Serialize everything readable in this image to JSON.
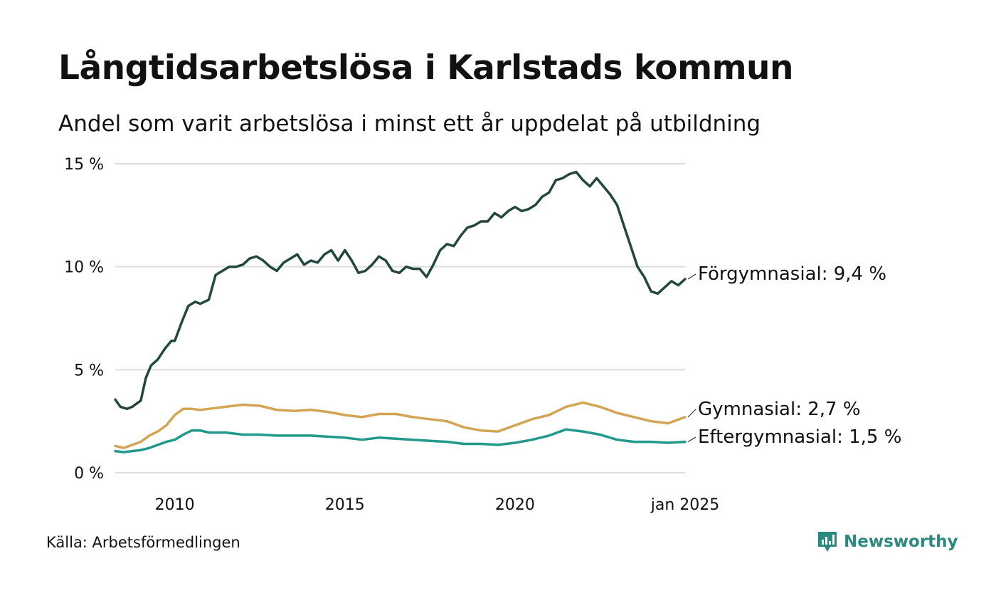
{
  "header": {
    "title": "Långtidsarbetslösa i Karlstads kommun",
    "subtitle": "Andel som varit arbetslösa i minst ett år uppdelat på utbildning"
  },
  "footer": {
    "source": "Källa: Arbetsförmedlingen",
    "brand": "Newsworthy"
  },
  "colors": {
    "forgymnasial": "#22473f",
    "gymnasial": "#d4a455",
    "eftergymnasial": "#22998a",
    "grid": "#dddddd",
    "brand": "#2a8a7f"
  },
  "chart_data": {
    "type": "line",
    "title": "Långtidsarbetslösa i Karlstads kommun",
    "subtitle": "Andel som varit arbetslösa i minst ett år uppdelat på utbildning",
    "xlabel": "",
    "ylabel": "",
    "x_range": [
      2008.25,
      2025.0
    ],
    "ylim": [
      0,
      15
    ],
    "y_ticks": [
      0,
      5,
      10,
      15
    ],
    "y_tick_labels": [
      "0 %",
      "5 %",
      "10 %",
      "15 %"
    ],
    "x_ticks": [
      2010,
      2015,
      2020,
      2025
    ],
    "x_tick_labels": [
      "2010",
      "2015",
      "2020",
      "jan 2025"
    ],
    "grid": true,
    "series": [
      {
        "name": "Förgymnasial",
        "color": "#22473f",
        "end_label": "Förgymnasial: 9,4 %",
        "x": [
          2008.25,
          2008.4,
          2008.6,
          2008.75,
          2009.0,
          2009.15,
          2009.3,
          2009.5,
          2009.7,
          2009.9,
          2010.0,
          2010.2,
          2010.4,
          2010.6,
          2010.75,
          2011.0,
          2011.2,
          2011.4,
          2011.6,
          2011.8,
          2012.0,
          2012.2,
          2012.4,
          2012.6,
          2012.8,
          2013.0,
          2013.2,
          2013.4,
          2013.6,
          2013.8,
          2014.0,
          2014.2,
          2014.4,
          2014.6,
          2014.8,
          2015.0,
          2015.2,
          2015.4,
          2015.6,
          2015.8,
          2016.0,
          2016.2,
          2016.4,
          2016.6,
          2016.8,
          2017.0,
          2017.2,
          2017.4,
          2017.6,
          2017.8,
          2018.0,
          2018.2,
          2018.4,
          2018.6,
          2018.8,
          2019.0,
          2019.2,
          2019.4,
          2019.6,
          2019.8,
          2020.0,
          2020.2,
          2020.4,
          2020.6,
          2020.8,
          2021.0,
          2021.2,
          2021.4,
          2021.6,
          2021.8,
          2022.0,
          2022.2,
          2022.4,
          2022.6,
          2022.8,
          2023.0,
          2023.2,
          2023.4,
          2023.6,
          2023.8,
          2024.0,
          2024.2,
          2024.4,
          2024.6,
          2024.8,
          2025.0
        ],
        "values": [
          3.55,
          3.2,
          3.1,
          3.2,
          3.5,
          4.6,
          5.2,
          5.5,
          6.0,
          6.4,
          6.4,
          7.3,
          8.1,
          8.3,
          8.2,
          8.4,
          9.6,
          9.8,
          10.0,
          10.0,
          10.1,
          10.4,
          10.5,
          10.3,
          10.0,
          9.8,
          10.2,
          10.4,
          10.6,
          10.1,
          10.3,
          10.2,
          10.6,
          10.8,
          10.3,
          10.8,
          10.3,
          9.7,
          9.8,
          10.1,
          10.5,
          10.3,
          9.8,
          9.7,
          10.0,
          9.9,
          9.9,
          9.5,
          10.1,
          10.8,
          11.1,
          11.0,
          11.5,
          11.9,
          12.0,
          12.2,
          12.2,
          12.6,
          12.4,
          12.7,
          12.9,
          12.7,
          12.8,
          13.0,
          13.4,
          13.6,
          14.2,
          14.3,
          14.5,
          14.6,
          14.2,
          13.9,
          14.3,
          13.9,
          13.5,
          13.0,
          12.0,
          11.0,
          10.0,
          9.5,
          8.8,
          8.7,
          9.0,
          9.3,
          9.1,
          9.4
        ]
      },
      {
        "name": "Gymnasial",
        "color": "#d4a455",
        "end_label": "Gymnasial: 2,7 %",
        "x": [
          2008.25,
          2008.5,
          2008.75,
          2009.0,
          2009.25,
          2009.5,
          2009.75,
          2010.0,
          2010.25,
          2010.5,
          2010.75,
          2011.0,
          2011.5,
          2012.0,
          2012.5,
          2013.0,
          2013.5,
          2014.0,
          2014.5,
          2015.0,
          2015.5,
          2016.0,
          2016.5,
          2017.0,
          2017.5,
          2018.0,
          2018.5,
          2019.0,
          2019.5,
          2020.0,
          2020.5,
          2021.0,
          2021.5,
          2022.0,
          2022.5,
          2023.0,
          2023.5,
          2024.0,
          2024.5,
          2025.0
        ],
        "values": [
          1.3,
          1.2,
          1.35,
          1.5,
          1.8,
          2.0,
          2.3,
          2.8,
          3.1,
          3.1,
          3.05,
          3.1,
          3.2,
          3.3,
          3.25,
          3.05,
          3.0,
          3.05,
          2.95,
          2.8,
          2.7,
          2.85,
          2.85,
          2.7,
          2.6,
          2.5,
          2.2,
          2.05,
          2.0,
          2.3,
          2.6,
          2.8,
          3.2,
          3.4,
          3.2,
          2.9,
          2.7,
          2.5,
          2.4,
          2.7
        ]
      },
      {
        "name": "Eftergymnasial",
        "color": "#22998a",
        "end_label": "Eftergymnasial: 1,5 %",
        "x": [
          2008.25,
          2008.5,
          2008.75,
          2009.0,
          2009.25,
          2009.5,
          2009.75,
          2010.0,
          2010.25,
          2010.5,
          2010.75,
          2011.0,
          2011.5,
          2012.0,
          2012.5,
          2013.0,
          2013.5,
          2014.0,
          2014.5,
          2015.0,
          2015.5,
          2016.0,
          2016.5,
          2017.0,
          2017.5,
          2018.0,
          2018.5,
          2019.0,
          2019.5,
          2020.0,
          2020.5,
          2021.0,
          2021.5,
          2022.0,
          2022.5,
          2023.0,
          2023.5,
          2024.0,
          2024.5,
          2025.0
        ],
        "values": [
          1.05,
          1.0,
          1.05,
          1.1,
          1.2,
          1.35,
          1.5,
          1.6,
          1.85,
          2.05,
          2.05,
          1.95,
          1.95,
          1.85,
          1.85,
          1.8,
          1.8,
          1.8,
          1.75,
          1.7,
          1.6,
          1.7,
          1.65,
          1.6,
          1.55,
          1.5,
          1.4,
          1.4,
          1.35,
          1.45,
          1.6,
          1.8,
          2.1,
          2.0,
          1.85,
          1.6,
          1.5,
          1.5,
          1.45,
          1.5
        ]
      }
    ]
  }
}
